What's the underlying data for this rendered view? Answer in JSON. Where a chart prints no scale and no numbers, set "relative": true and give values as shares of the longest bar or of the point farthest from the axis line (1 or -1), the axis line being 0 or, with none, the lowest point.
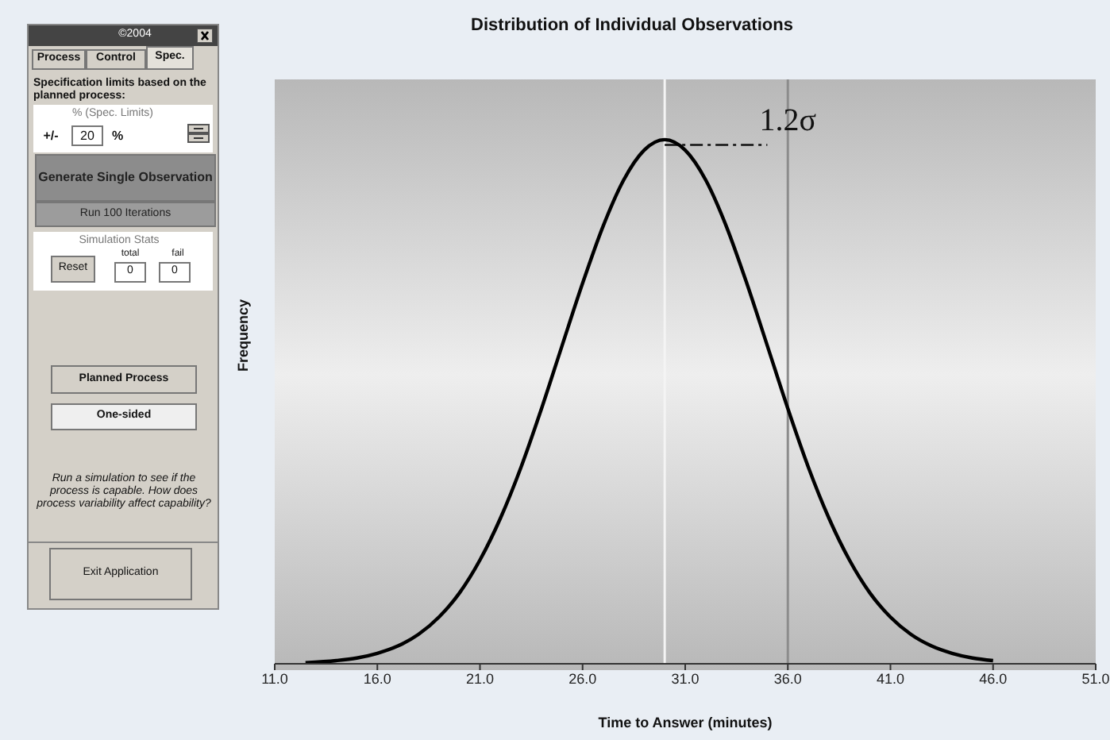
{
  "chart_data": [
    {
      "type": "other",
      "annotations": [
        "©2004",
        "Process",
        "Control",
        "Spec.",
        "Specification limits based on the planned process:",
        "% (Spec. Limits)",
        "+/-",
        "20",
        "%",
        "Generate Single Observation",
        "Run 100 Iterations",
        "Simulation Stats",
        "Reset",
        "total",
        "fail",
        "0",
        "0",
        "Planned Process",
        "One-sided",
        "Run a simulation to see if the process is capable. How does process variability affect capability?",
        "Exit Application"
      ]
    },
    {
      "type": "line",
      "title": "Distribution of Individual Observations",
      "xlabel": "Time to Answer (minutes)",
      "ylabel": "Frequency",
      "relative": true,
      "x": [
        12.5,
        14,
        15,
        16,
        17,
        18,
        19,
        20,
        21,
        22,
        23,
        24,
        25,
        26,
        27,
        28,
        29,
        30,
        31,
        32,
        33,
        34,
        35,
        36,
        37,
        38,
        39,
        40,
        41,
        42,
        43,
        44,
        45,
        46
      ],
      "series": [
        {
          "color": "#000000",
          "values": [
            0.002,
            0.006,
            0.011,
            0.02,
            0.034,
            0.056,
            0.089,
            0.135,
            0.198,
            0.278,
            0.375,
            0.487,
            0.607,
            0.726,
            0.835,
            0.923,
            0.98,
            1,
            0.98,
            0.923,
            0.835,
            0.726,
            0.607,
            0.487,
            0.375,
            0.278,
            0.198,
            0.135,
            0.089,
            0.056,
            0.034,
            0.02,
            0.011,
            0.006
          ]
        }
      ],
      "xlim": [
        11,
        51
      ],
      "xticks": [
        {
          "value": 11,
          "label": "11.0"
        },
        {
          "value": 16,
          "label": "16.0"
        },
        {
          "value": 21,
          "label": "21.0"
        },
        {
          "value": 26,
          "label": "26.0"
        },
        {
          "value": 31,
          "label": "31.0"
        },
        {
          "value": 36,
          "label": "36.0"
        },
        {
          "value": 41,
          "label": "41.0"
        },
        {
          "value": 46,
          "label": "46.0"
        },
        {
          "value": 51,
          "label": "51.0"
        }
      ],
      "ref_lines": [
        {
          "axis": "x",
          "value": 30,
          "color": "#f4f4f4"
        },
        {
          "axis": "x",
          "value": 36,
          "color": "#8c8c8c"
        }
      ],
      "annotations": [
        {
          "text": "1.2σ",
          "x": 36,
          "y": 1.04
        }
      ],
      "marker": "none",
      "line_style": "solid"
    }
  ]
}
